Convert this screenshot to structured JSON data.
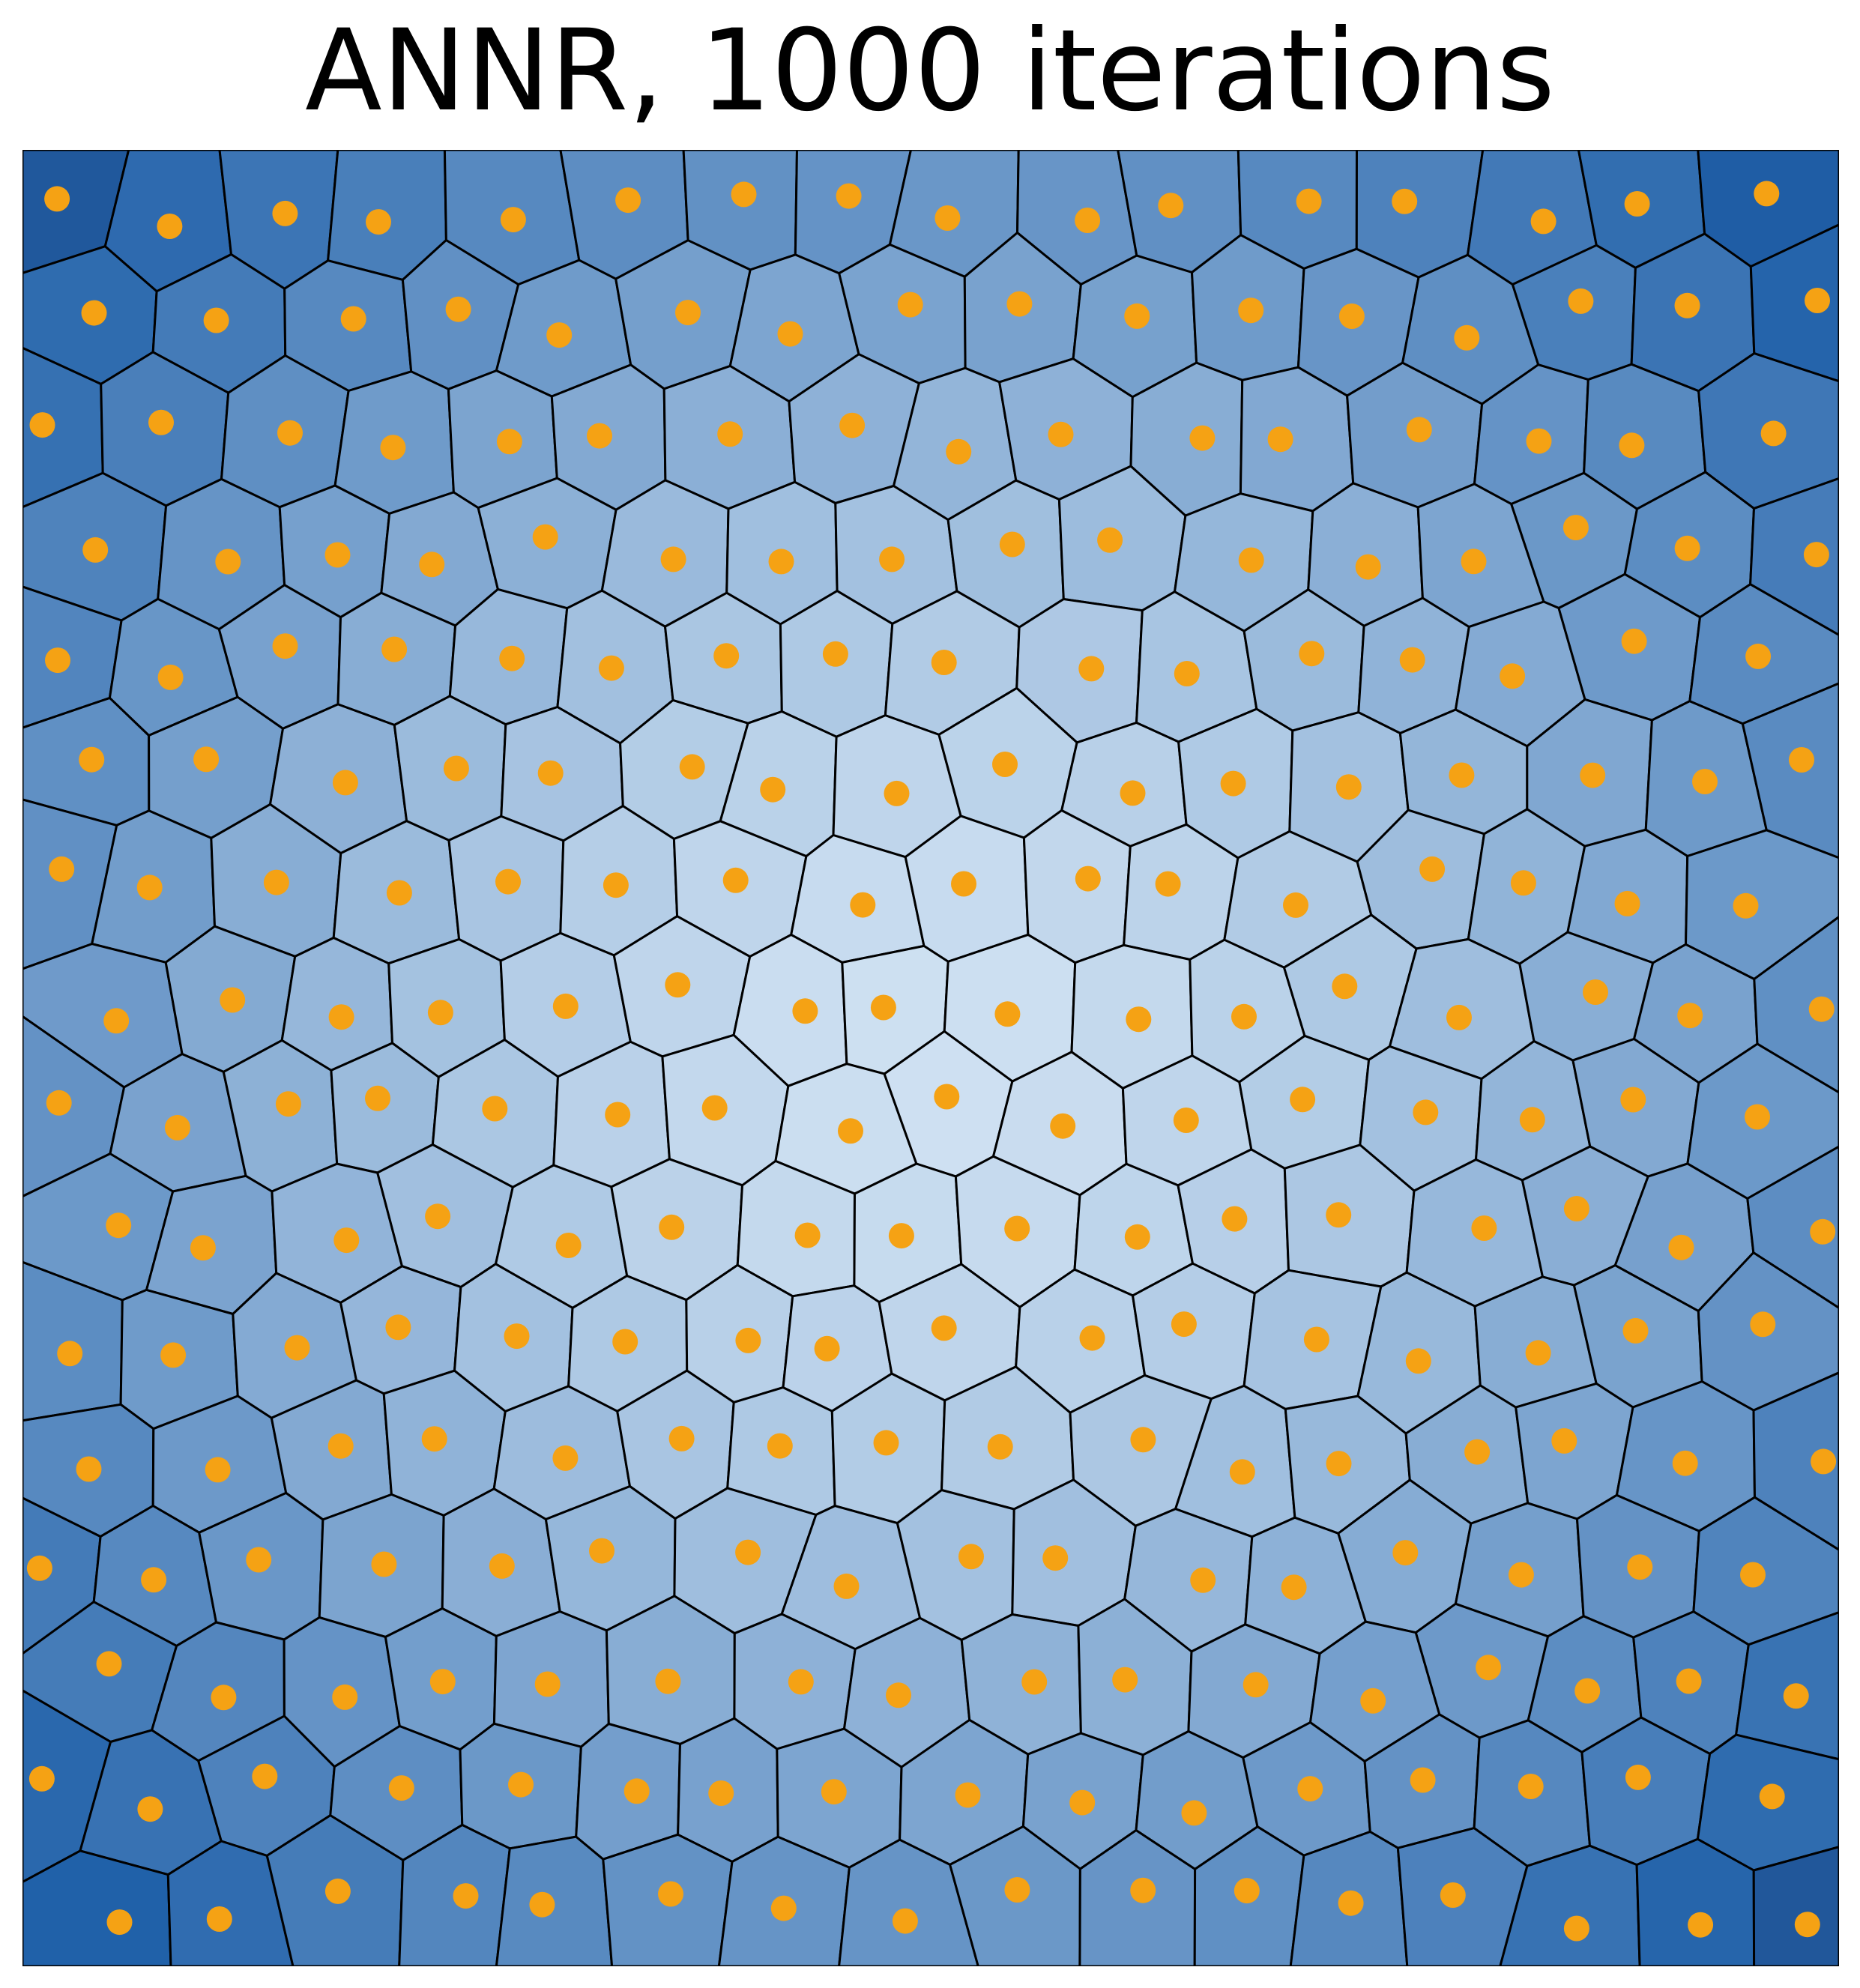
{
  "title": "ANNR, 1000 iterations",
  "colors": {
    "cell_center": "#cfe1f2",
    "cell_edge": "#1e5fa8",
    "cell_border": "#000000",
    "site_dot": "#f5a214",
    "corner_dark": "#244b86"
  },
  "diagram": {
    "kind": "voronoi-tessellation",
    "coloring": "radial gradient, light at center to dark at edges",
    "site_rows": 16,
    "site_cols": 16
  }
}
